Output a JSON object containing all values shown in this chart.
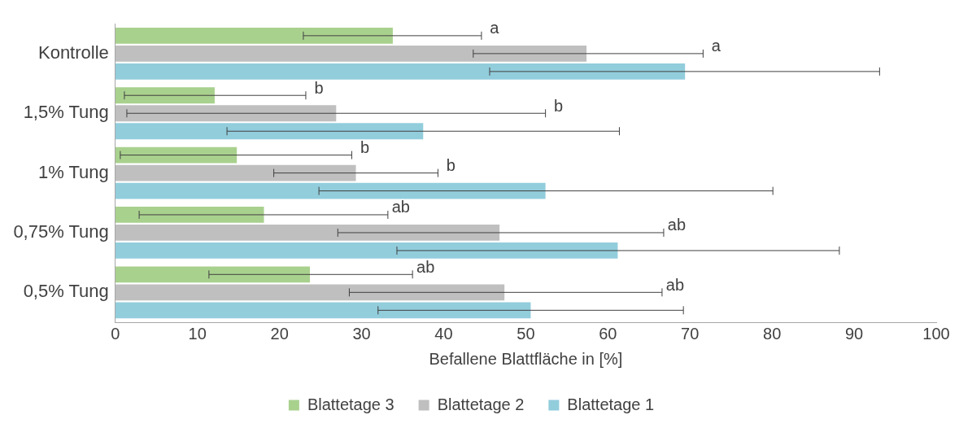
{
  "chart_data": {
    "type": "bar",
    "orientation": "horizontal",
    "xlabel": "Befallene Blattfläche in [%]",
    "categories": [
      "Kontrolle",
      "1,5% Tung",
      "1% Tung",
      "0,75% Tung",
      "0,5% Tung"
    ],
    "series": [
      {
        "name": "Blattetage 3",
        "color": "#a9d18e",
        "values": [
          33.8,
          12.1,
          14.8,
          18.1,
          23.7
        ],
        "errors": [
          [
            22.9,
            44.6
          ],
          [
            1.1,
            23.2
          ],
          [
            0.6,
            28.8
          ],
          [
            2.9,
            33.2
          ],
          [
            11.4,
            36.2
          ]
        ]
      },
      {
        "name": "Blattetage 2",
        "color": "#bfbfbf",
        "values": [
          57.4,
          26.9,
          29.3,
          46.8,
          47.4
        ],
        "errors": [
          [
            43.6,
            71.6
          ],
          [
            1.4,
            52.4
          ],
          [
            19.3,
            39.3
          ],
          [
            27.1,
            66.8
          ],
          [
            28.5,
            66.6
          ]
        ]
      },
      {
        "name": "Blattetage 1",
        "color": "#92cddc",
        "values": [
          69.4,
          37.5,
          52.4,
          61.2,
          50.6
        ],
        "errors": [
          [
            45.6,
            93.1
          ],
          [
            13.6,
            61.4
          ],
          [
            24.8,
            80.1
          ],
          [
            34.3,
            88.2
          ],
          [
            32.0,
            69.2
          ]
        ]
      }
    ],
    "xlim": [
      0,
      100
    ],
    "xticks": [
      0,
      10,
      20,
      30,
      40,
      50,
      60,
      70,
      80,
      90,
      100
    ],
    "grid": false,
    "legend": "bottom",
    "annotations": [
      "a",
      "a",
      "b",
      "b",
      "b",
      "b",
      "ab",
      "ab",
      "ab",
      "ab"
    ]
  }
}
